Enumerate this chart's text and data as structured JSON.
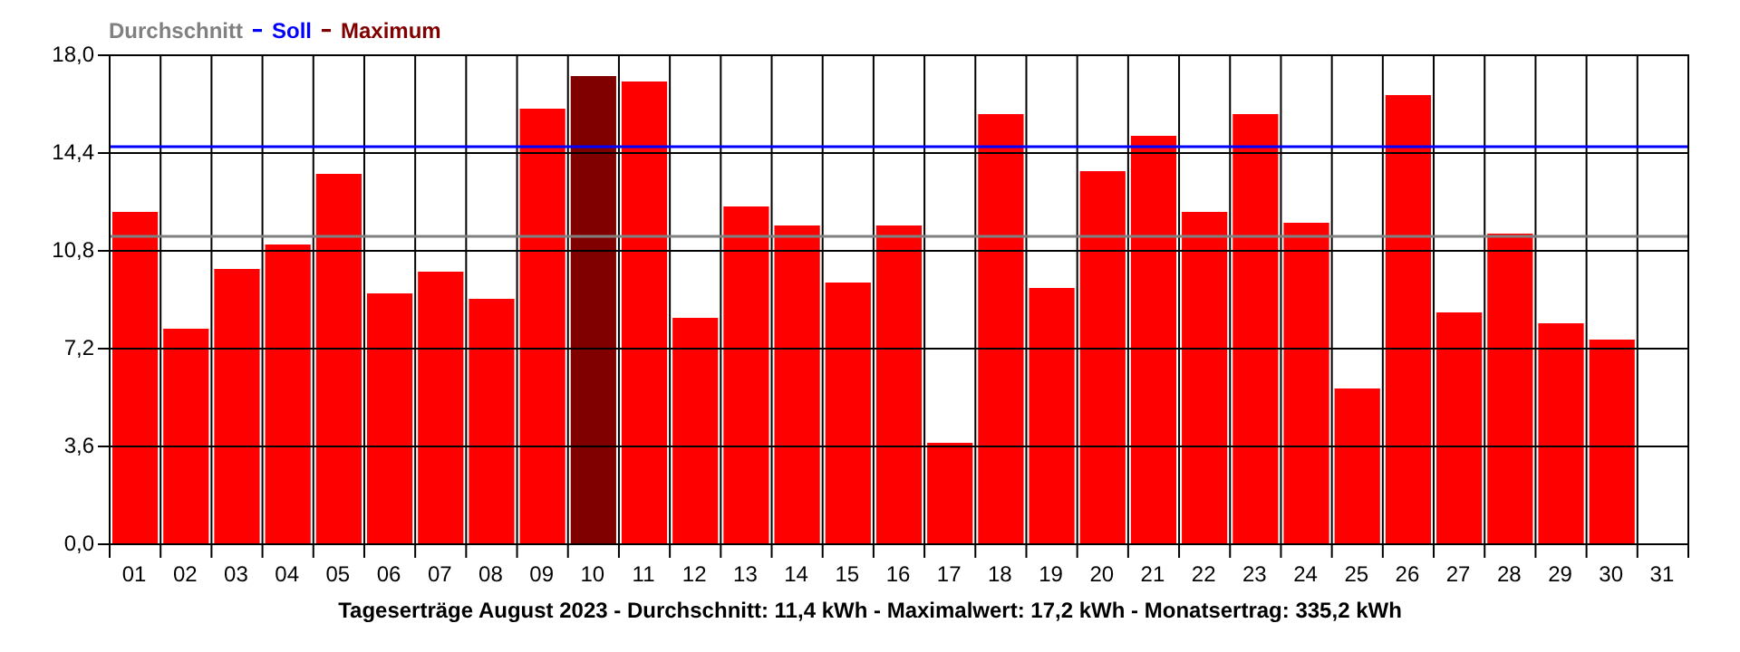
{
  "chart_data": {
    "type": "bar",
    "title": "Tageserträge August 2023 - Durchschnitt: 11,4 kWh - Maximalwert: 17,2 kWh - Monatsertrag: 335,2 kWh",
    "categories": [
      "01",
      "02",
      "03",
      "04",
      "05",
      "06",
      "07",
      "08",
      "09",
      "10",
      "11",
      "12",
      "13",
      "14",
      "15",
      "16",
      "17",
      "18",
      "19",
      "20",
      "21",
      "22",
      "23",
      "24",
      "25",
      "26",
      "27",
      "28",
      "29",
      "30",
      "31"
    ],
    "series": [
      {
        "color": "#ff0000",
        "values": [
          12.2,
          7.9,
          10.1,
          11.0,
          13.6,
          9.2,
          10.0,
          9.0,
          16.0,
          null,
          17.0,
          8.3,
          12.4,
          11.7,
          9.6,
          11.7,
          3.7,
          15.8,
          9.4,
          13.7,
          15.0,
          12.2,
          15.8,
          11.8,
          5.7,
          16.5,
          8.5,
          11.4,
          8.1,
          7.5,
          null
        ]
      },
      {
        "name": "Maximum",
        "color": "#800000",
        "values": [
          null,
          null,
          null,
          null,
          null,
          null,
          null,
          null,
          null,
          17.2,
          null,
          null,
          null,
          null,
          null,
          null,
          null,
          null,
          null,
          null,
          null,
          null,
          null,
          null,
          null,
          null,
          null,
          null,
          null,
          null,
          null
        ]
      }
    ],
    "ref_lines": [
      {
        "axis": "y",
        "value": 11.3,
        "label": "Durchschnitt",
        "color": "#808080"
      },
      {
        "axis": "y",
        "value": 14.6,
        "label": "Soll",
        "color": "#0000ff"
      }
    ],
    "ylim": [
      0,
      18
    ],
    "yticks": [
      {
        "value": 0,
        "label": "0,0"
      },
      {
        "value": 3.6,
        "label": "3,6"
      },
      {
        "value": 7.2,
        "label": "7,2"
      },
      {
        "value": 10.8,
        "label": "10,8"
      },
      {
        "value": 14.4,
        "label": "14,4"
      },
      {
        "value": 18,
        "label": "18,0"
      }
    ],
    "grid": true,
    "legend": "top left"
  }
}
